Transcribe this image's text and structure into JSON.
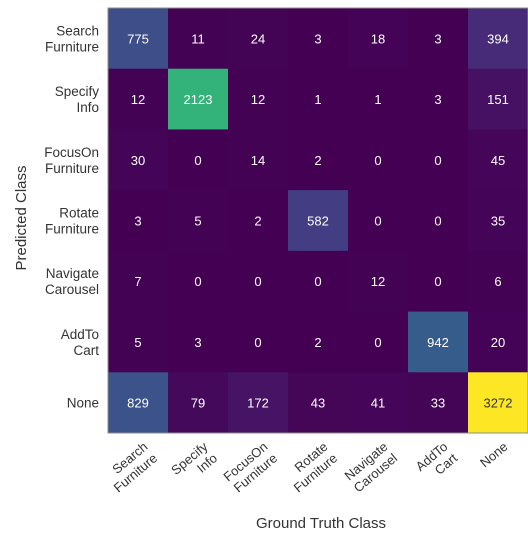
{
  "chart_data": {
    "type": "heatmap",
    "title": "",
    "xlabel": "Ground Truth Class",
    "ylabel": "Predicted Class",
    "x_categories": [
      [
        "Search",
        "Furniture"
      ],
      [
        "Specify",
        "Info"
      ],
      [
        "FocusOn",
        "Furniture"
      ],
      [
        "Rotate",
        "Furniture"
      ],
      [
        "Navigate",
        "Carousel"
      ],
      [
        "AddTo",
        "Cart"
      ],
      [
        "None"
      ]
    ],
    "y_categories": [
      [
        "Search",
        "Furniture"
      ],
      [
        "Specify",
        "Info"
      ],
      [
        "FocusOn",
        "Furniture"
      ],
      [
        "Rotate",
        "Furniture"
      ],
      [
        "Navigate",
        "Carousel"
      ],
      [
        "AddTo",
        "Cart"
      ],
      [
        "None"
      ]
    ],
    "values": [
      [
        775,
        11,
        24,
        3,
        18,
        3,
        394
      ],
      [
        12,
        2123,
        12,
        1,
        1,
        3,
        151
      ],
      [
        30,
        0,
        14,
        2,
        0,
        0,
        45
      ],
      [
        3,
        5,
        2,
        582,
        0,
        0,
        35
      ],
      [
        7,
        0,
        0,
        0,
        12,
        0,
        6
      ],
      [
        5,
        3,
        0,
        2,
        0,
        942,
        20
      ],
      [
        829,
        79,
        172,
        43,
        41,
        33,
        3272
      ]
    ],
    "colormap": "viridis",
    "color_range": [
      0,
      3272
    ],
    "grid": false,
    "legend": "none"
  }
}
